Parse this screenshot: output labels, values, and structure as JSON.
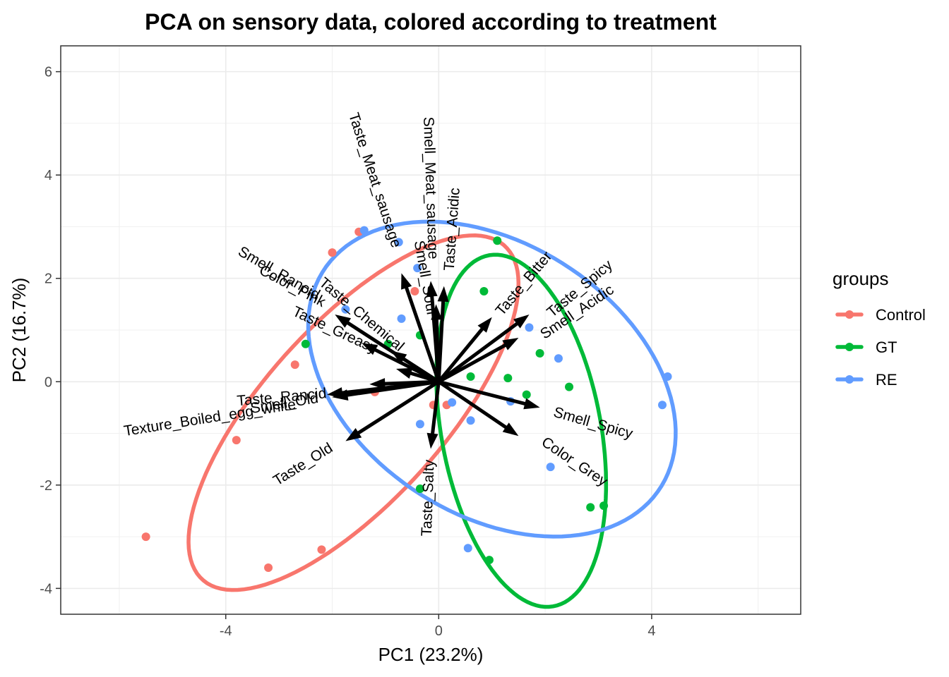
{
  "chart_data": {
    "type": "scatter",
    "title": "PCA on sensory data, colored according to treatment",
    "xlabel": "PC1 (23.2%)",
    "ylabel": "PC2 (16.7%)",
    "xlim": [
      -7.1,
      6.8
    ],
    "ylim": [
      -4.5,
      6.5
    ],
    "xticks": [
      -4,
      0,
      4
    ],
    "xtick_labels": [
      "-4",
      "0",
      "4"
    ],
    "yticks": [
      -4,
      -2,
      0,
      2,
      4,
      6
    ],
    "ytick_labels": [
      "-4",
      "-2",
      "0",
      "2",
      "4",
      "6"
    ],
    "grid": true,
    "legend": {
      "title": "groups",
      "position": "right"
    },
    "series": [
      {
        "name": "Control",
        "color": "#F8766D",
        "points": [
          [
            -1.5,
            2.9
          ],
          [
            -2.0,
            2.5
          ],
          [
            -2.7,
            0.33
          ],
          [
            -3.8,
            -1.13
          ],
          [
            -5.5,
            -3.0
          ],
          [
            -3.2,
            -3.6
          ],
          [
            -2.2,
            -3.25
          ],
          [
            -0.45,
            1.75
          ],
          [
            -0.1,
            -0.45
          ],
          [
            0.15,
            -0.45
          ],
          [
            -1.2,
            -0.2
          ]
        ],
        "ellipse": {
          "center": [
            -1.6,
            -0.6
          ],
          "semi_axes": [
            4.3,
            1.7
          ],
          "angle_deg": 49
        }
      },
      {
        "name": "GT",
        "color": "#00BA38",
        "points": [
          [
            1.1,
            2.73
          ],
          [
            0.85,
            1.75
          ],
          [
            -0.95,
            0.73
          ],
          [
            -0.35,
            0.9
          ],
          [
            -2.5,
            0.73
          ],
          [
            0.6,
            0.1
          ],
          [
            1.3,
            0.07
          ],
          [
            1.9,
            0.55
          ],
          [
            1.65,
            -0.25
          ],
          [
            2.45,
            -0.1
          ],
          [
            2.85,
            -2.43
          ],
          [
            3.1,
            -2.4
          ],
          [
            -0.35,
            -2.07
          ],
          [
            0.95,
            -3.45
          ]
        ],
        "ellipse": {
          "center": [
            1.55,
            -0.95
          ],
          "semi_axes": [
            3.45,
            1.5
          ],
          "angle_deg": -80
        }
      },
      {
        "name": "RE",
        "color": "#619CFF",
        "points": [
          [
            -1.4,
            2.93
          ],
          [
            -0.75,
            2.7
          ],
          [
            -0.4,
            2.2
          ],
          [
            -1.75,
            1.4
          ],
          [
            -0.7,
            1.22
          ],
          [
            1.7,
            1.05
          ],
          [
            2.25,
            0.45
          ],
          [
            4.3,
            0.1
          ],
          [
            4.2,
            -0.45
          ],
          [
            0.25,
            -0.4
          ],
          [
            0.6,
            -0.75
          ],
          [
            -0.35,
            -0.82
          ],
          [
            2.1,
            -1.65
          ],
          [
            0.55,
            -3.22
          ],
          [
            1.35,
            -0.38
          ]
        ],
        "ellipse": {
          "center": [
            1.0,
            0.05
          ],
          "semi_axes": [
            3.8,
            2.6
          ],
          "angle_deg": -35
        }
      }
    ],
    "loadings": [
      {
        "name": "Taste_Meat_sausage",
        "end": [
          -0.7,
          2.1
        ],
        "label_at": [
          -1.2,
          3.9
        ],
        "label_rotation": 72
      },
      {
        "name": "Smell_Meat_sausage",
        "end": [
          -0.15,
          1.95
        ],
        "label_at": [
          -0.15,
          3.75
        ],
        "label_rotation": 88
      },
      {
        "name": "Taste_Acidic",
        "end": [
          0.1,
          1.85
        ],
        "label_at": [
          0.25,
          2.95
        ],
        "label_rotation": -86
      },
      {
        "name": "Smell_Sour",
        "end": [
          -0.05,
          1.5
        ],
        "label_at": [
          -0.25,
          2.0
        ],
        "label_rotation": 80
      },
      {
        "name": "Taste_Bitter",
        "end": [
          1.0,
          1.25
        ],
        "label_at": [
          1.6,
          1.9
        ],
        "label_rotation": -50
      },
      {
        "name": "Taste_Spicy",
        "end": [
          1.7,
          1.3
        ],
        "label_at": [
          2.65,
          1.8
        ],
        "label_rotation": -40
      },
      {
        "name": "Smell_Acidic",
        "end": [
          1.5,
          0.85
        ],
        "label_at": [
          2.6,
          1.35
        ],
        "label_rotation": -34
      },
      {
        "name": "Smell_Rancid",
        "end": [
          -1.95,
          1.3
        ],
        "label_at": [
          -3.0,
          2.1
        ],
        "label_rotation": 30
      },
      {
        "name": "Color_Pink",
        "end": [
          -1.45,
          0.75
        ],
        "label_at": [
          -2.75,
          1.85
        ],
        "label_rotation": 28
      },
      {
        "name": "Taste_Greasy",
        "end": [
          -0.8,
          0.25
        ],
        "label_at": [
          -1.95,
          1.0
        ],
        "label_rotation": 25
      },
      {
        "name": "Taste_Chemical",
        "end": [
          -0.9,
          0.6
        ],
        "label_at": [
          -1.45,
          1.3
        ],
        "label_rotation": 40
      },
      {
        "name": "Taste_Rancid",
        "end": [
          -1.3,
          -0.05
        ],
        "label_at": [
          -2.95,
          -0.3
        ],
        "label_rotation": -5
      },
      {
        "name": "Smell_Old",
        "end": [
          -2.0,
          -0.3
        ],
        "label_at": [
          -2.9,
          -0.42
        ],
        "label_rotation": -9
      },
      {
        "name": "Texture_Boiled_egg_white",
        "end": [
          -2.1,
          -0.25
        ],
        "label_at": [
          -4.3,
          -0.7
        ],
        "label_rotation": -9
      },
      {
        "name": "Taste_Old",
        "end": [
          -1.75,
          -1.15
        ],
        "label_at": [
          -2.55,
          -1.6
        ],
        "label_rotation": -32
      },
      {
        "name": "Smell_Spicy",
        "end": [
          1.9,
          -0.5
        ],
        "label_at": [
          2.9,
          -0.8
        ],
        "label_rotation": 16
      },
      {
        "name": "Color_Grey",
        "end": [
          1.5,
          -1.05
        ],
        "label_at": [
          2.55,
          -1.55
        ],
        "label_rotation": 34
      },
      {
        "name": "Taste_Salty",
        "end": [
          -0.15,
          -1.3
        ],
        "label_at": [
          -0.2,
          -2.25
        ],
        "label_rotation": -88
      }
    ]
  }
}
